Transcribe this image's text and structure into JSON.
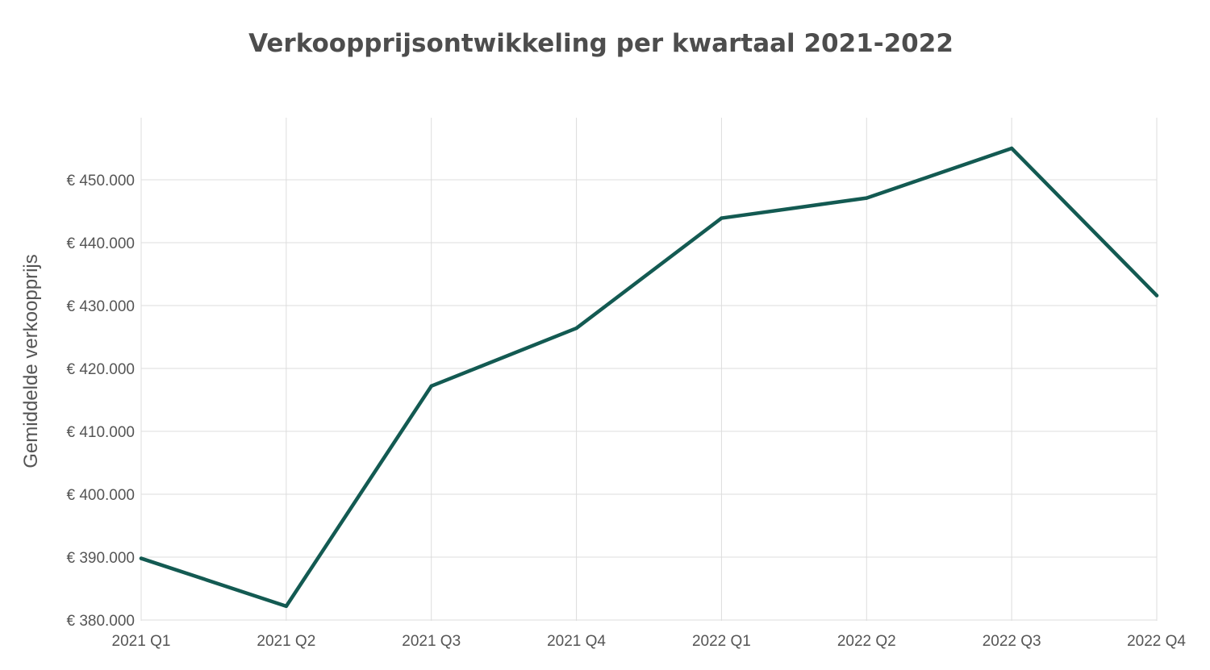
{
  "chart_data": {
    "type": "line",
    "title": "Verkoopprijsontwikkeling per kwartaal 2021-2022",
    "ylabel": "Gemiddelde verkoopprijs",
    "xlabel": "",
    "categories": [
      "2021 Q1",
      "2021 Q2",
      "2021 Q3",
      "2021 Q4",
      "2022 Q1",
      "2022 Q2",
      "2022 Q3",
      "2022 Q4"
    ],
    "series": [
      {
        "values": [
          389800,
          382200,
          417200,
          426400,
          443900,
          447100,
          455000,
          431600
        ]
      }
    ],
    "ylim": [
      380000,
      460000
    ],
    "yticks": [
      380000,
      390000,
      400000,
      410000,
      420000,
      430000,
      440000,
      450000
    ],
    "ytick_labels": [
      "€ 380.000",
      "€ 390.000",
      "€ 400.000",
      "€ 410.000",
      "€ 420.000",
      "€ 430.000",
      "€ 440.000",
      "€ 450.000"
    ],
    "grid": true,
    "legend": "none",
    "line_color": "#135a52",
    "grid_color": "#dddddd"
  }
}
